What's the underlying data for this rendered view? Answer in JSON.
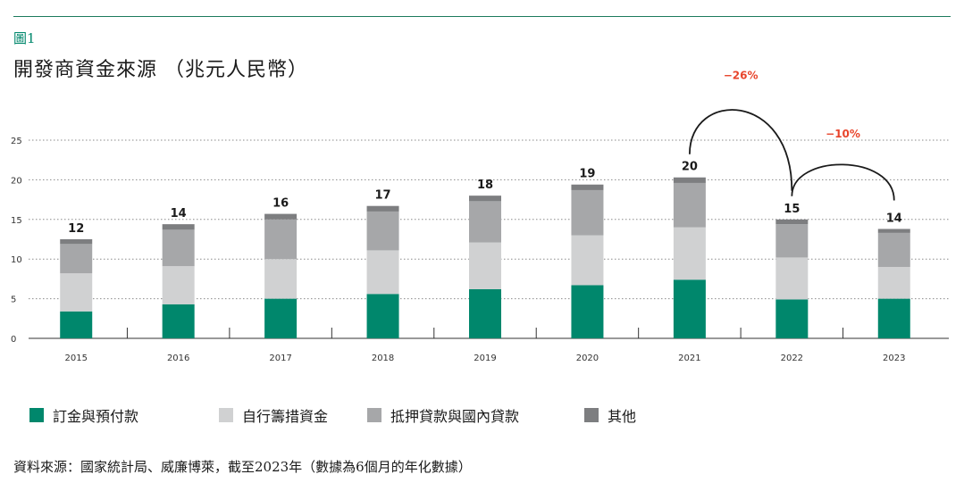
{
  "figure_label": "圖1",
  "title": "開發商資金來源 （兆元人民幣）",
  "source": "資料來源：國家統計局、威廉博萊，截至2023年（數據為6個月的年化數據）",
  "chart_data": {
    "type": "bar",
    "stacked": true,
    "title": "開發商資金來源 （兆元人民幣）",
    "categories": [
      "2015",
      "2016",
      "2017",
      "2018",
      "2019",
      "2020",
      "2021",
      "2022",
      "2023"
    ],
    "series": [
      {
        "name": "訂金與預付款",
        "color": "#00876c",
        "values": [
          3.4,
          4.3,
          5.0,
          5.6,
          6.2,
          6.7,
          7.4,
          4.9,
          5.0
        ]
      },
      {
        "name": "自行籌措資金",
        "color": "#d0d1d2",
        "values": [
          4.8,
          4.8,
          5.0,
          5.5,
          5.9,
          6.3,
          6.6,
          5.3,
          4.0
        ]
      },
      {
        "name": "抵押貸款與國內貸款",
        "color": "#a6a7a9",
        "values": [
          3.7,
          4.6,
          5.0,
          4.9,
          5.2,
          5.7,
          5.6,
          4.2,
          4.3
        ]
      },
      {
        "name": "其他",
        "color": "#7d7e80",
        "values": [
          0.6,
          0.7,
          0.7,
          0.7,
          0.7,
          0.7,
          0.7,
          0.6,
          0.5
        ]
      }
    ],
    "totals": [
      "12",
      "14",
      "16",
      "17",
      "18",
      "19",
      "20",
      "15",
      "14"
    ],
    "y_ticks": [
      0,
      5,
      10,
      15,
      20,
      25
    ],
    "ylim": [
      0,
      25
    ],
    "grid": "dotted horizontal",
    "legend_placement": "bottom",
    "annotations": [
      {
        "label": "−26%",
        "from": "2021",
        "to": "2022",
        "color": "#e8452c"
      },
      {
        "label": "−10%",
        "from": "2022",
        "to": "2023",
        "color": "#e8452c"
      }
    ]
  }
}
